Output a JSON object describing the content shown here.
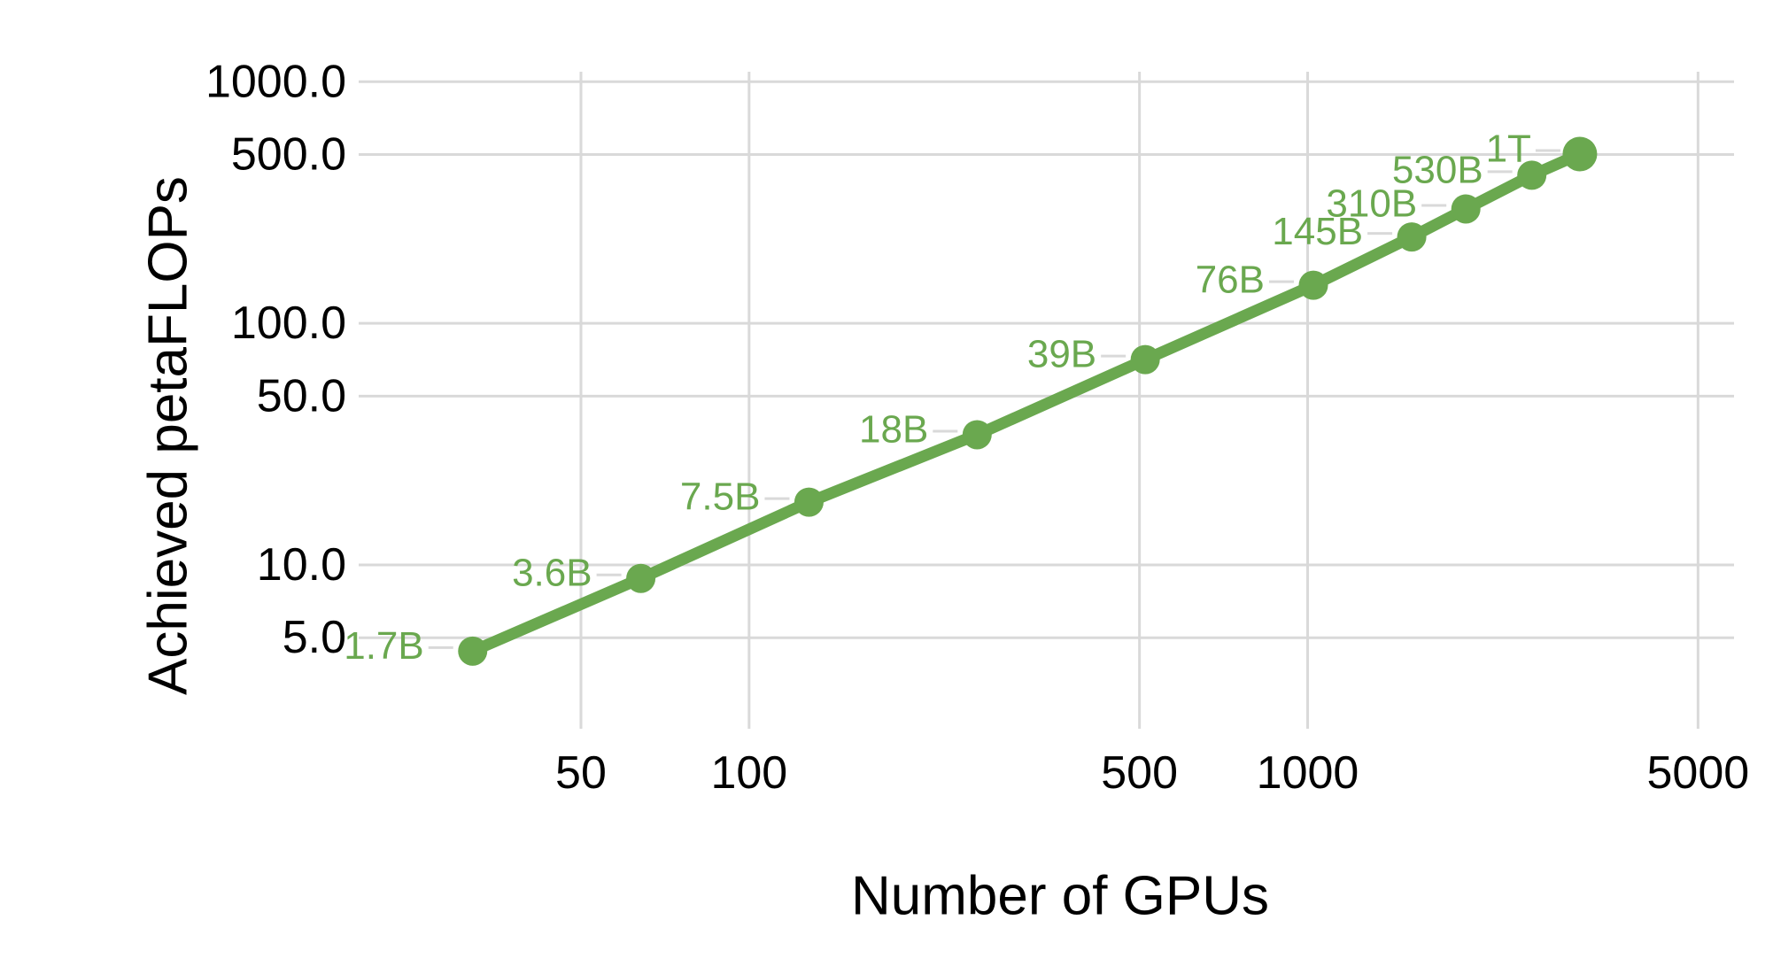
{
  "chart_data": {
    "type": "line",
    "title": "",
    "xlabel": "Number of GPUs",
    "ylabel": "Achieved petaFLOPs",
    "x_scale": "log",
    "y_scale": "log",
    "grid": true,
    "legend": "none",
    "xlim": [
      20,
      5800
    ],
    "ylim": [
      2.1,
      1100
    ],
    "x_ticks": [
      {
        "value": 50,
        "label": "50"
      },
      {
        "value": 100,
        "label": "100"
      },
      {
        "value": 500,
        "label": "500"
      },
      {
        "value": 1000,
        "label": "1000"
      },
      {
        "value": 5000,
        "label": "5000"
      }
    ],
    "y_ticks": [
      {
        "value": 1000,
        "label": "1000.0"
      },
      {
        "value": 500,
        "label": "500.0"
      },
      {
        "value": 100,
        "label": "100.0"
      },
      {
        "value": 50,
        "label": "50.0"
      },
      {
        "value": 10,
        "label": "10.0"
      },
      {
        "value": 5,
        "label": "5.0"
      }
    ],
    "series": [
      {
        "name": "Achieved petaFLOPs",
        "x_gpus": [
          32,
          64,
          128,
          256,
          512,
          1024,
          1536,
          1920,
          2520,
          3072
        ],
        "y_petaflops": [
          4.4,
          8.8,
          18.2,
          34.6,
          70.8,
          143.8,
          227.8,
          297.4,
          410.2,
          502.0
        ],
        "point_labels": [
          "1.7B",
          "3.6B",
          "7.5B",
          "18B",
          "39B",
          "76B",
          "145B",
          "310B",
          "530B",
          "1T"
        ]
      }
    ],
    "colors": {
      "series": "#6aa84f",
      "gridline": "#d9d9d9",
      "leader_line": "#d9d9d9",
      "tick_text": "#000000",
      "point_label_text": "#6aa84f"
    }
  }
}
